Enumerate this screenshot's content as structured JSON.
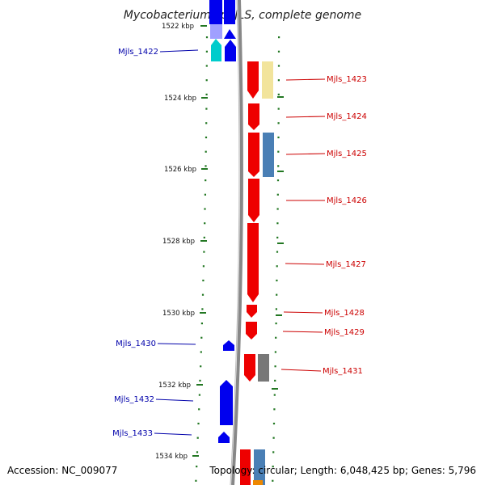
{
  "title": "Mycobacterium sp. JLS, complete genome",
  "footer": {
    "accession": "Accession: NC_009077",
    "topology": "Topology: circular; Length: 6,048,425 bp; Genes: 5,796"
  },
  "colors": {
    "reverse_strand": "#0000ee",
    "forward_strand": "#ee0000",
    "left_label": "#0000aa",
    "right_label": "#cc0000",
    "scale_tick": "#227722",
    "backbone": "#888888"
  },
  "scale_labels": [
    "1522 kbp",
    "1524 kbp",
    "1526 kbp",
    "1528 kbp",
    "1530 kbp",
    "1532 kbp",
    "1534 kbp"
  ],
  "left_gene_labels": [
    "Mjls_1422",
    "Mjls_1430",
    "Mjls_1432",
    "Mjls_1433"
  ],
  "right_gene_labels": [
    "Mjls_1423",
    "Mjls_1424",
    "Mjls_1425",
    "Mjls_1426",
    "Mjls_1427",
    "Mjls_1428",
    "Mjls_1429",
    "Mjls_1431"
  ]
}
